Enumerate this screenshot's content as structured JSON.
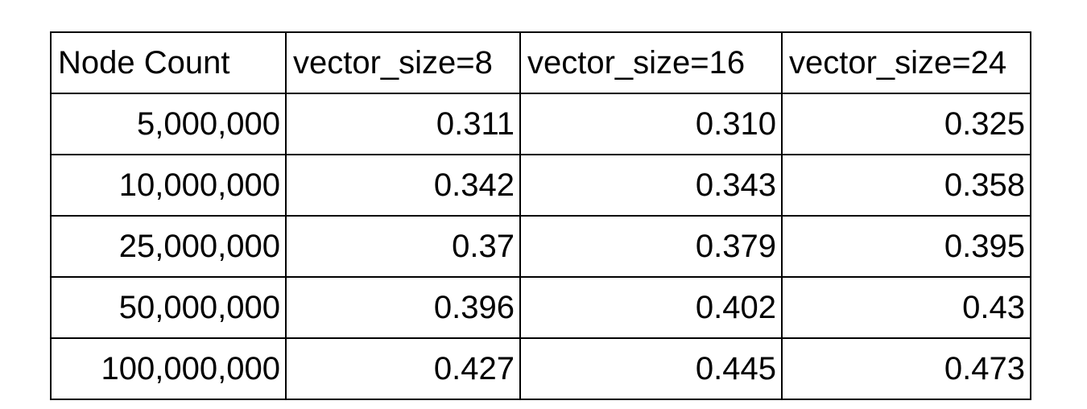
{
  "table": {
    "headers": [
      "Node Count",
      "vector_size=8",
      "vector_size=16",
      "vector_size=24"
    ],
    "rows": [
      [
        "5,000,000",
        "0.311",
        "0.310",
        "0.325"
      ],
      [
        "10,000,000",
        "0.342",
        "0.343",
        "0.358"
      ],
      [
        "25,000,000",
        "0.37",
        "0.379",
        "0.395"
      ],
      [
        "50,000,000",
        "0.396",
        "0.402",
        "0.43"
      ],
      [
        "100,000,000",
        "0.427",
        "0.445",
        "0.473"
      ]
    ]
  }
}
